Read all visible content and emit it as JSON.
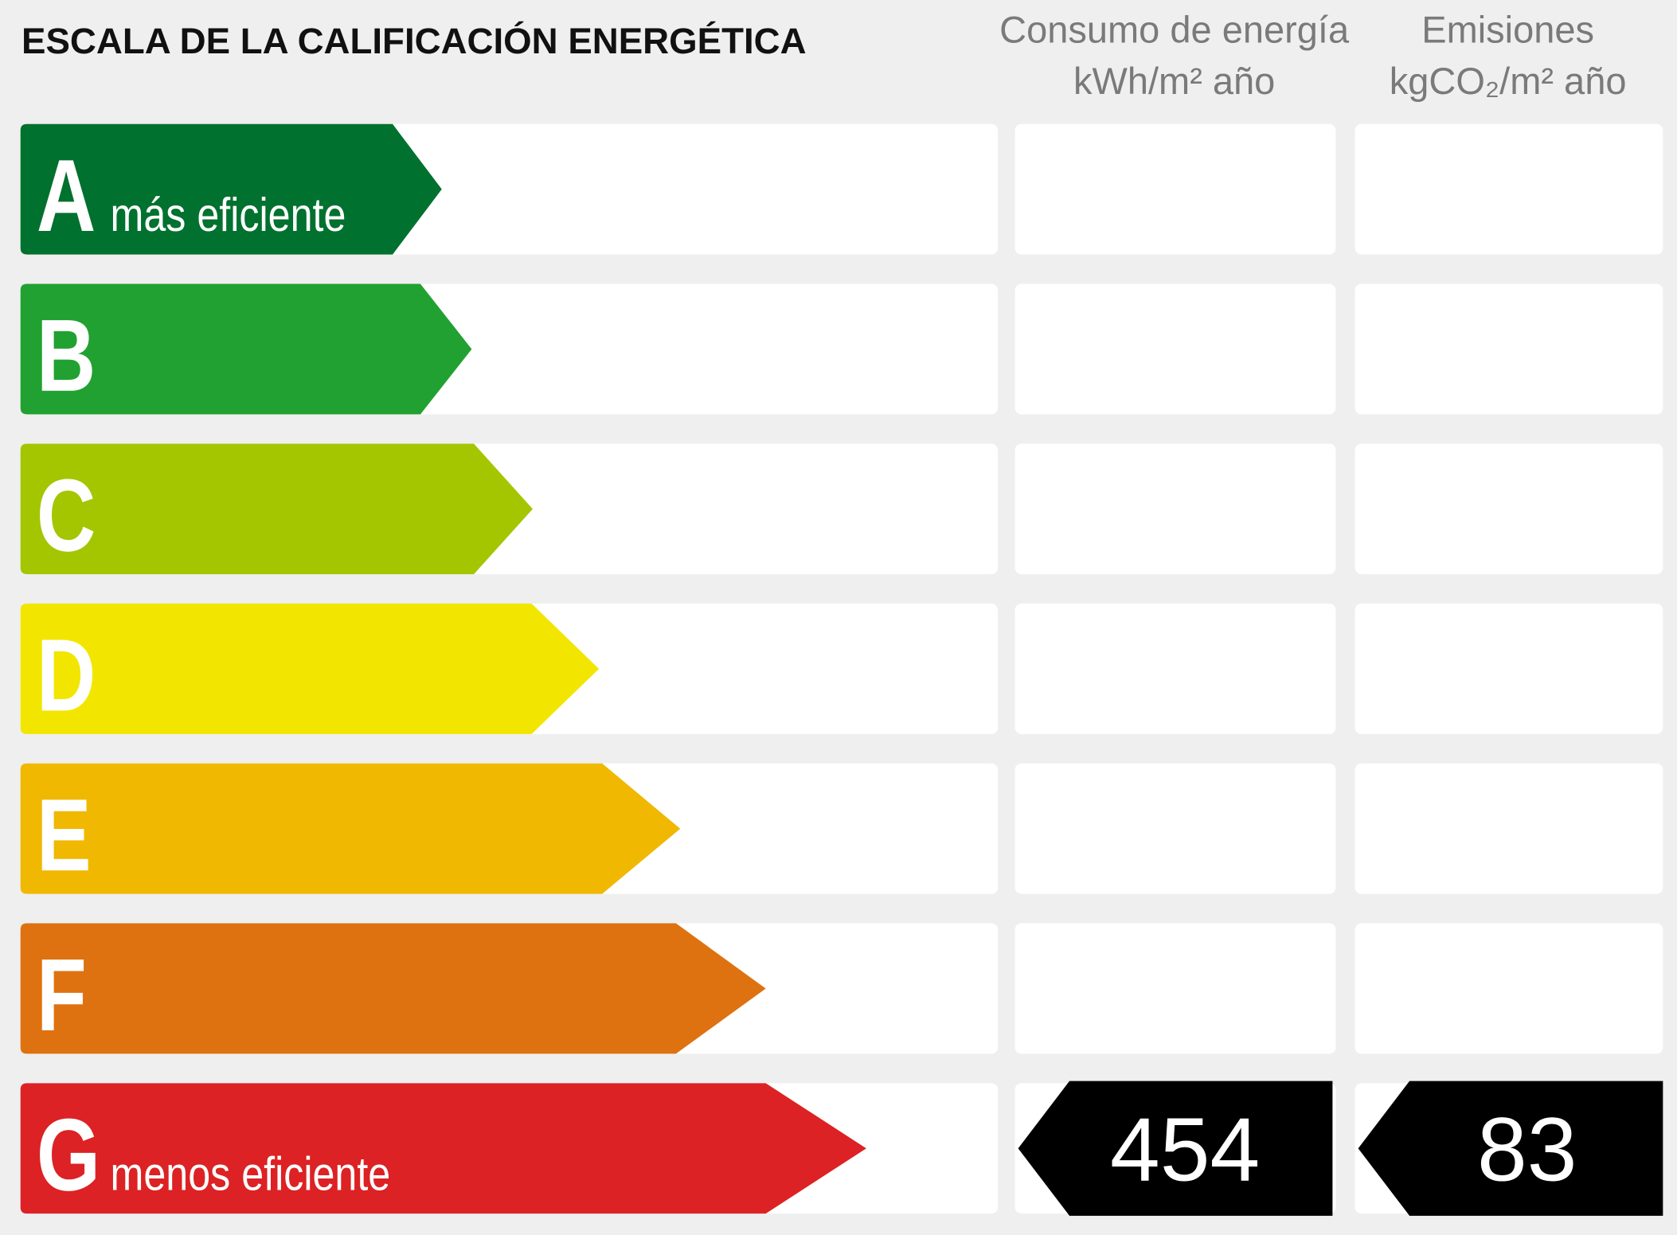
{
  "title": "ESCALA DE LA CALIFICACIÓN ENERGÉTICA",
  "columns": {
    "consumption": {
      "title": "Consumo de energía",
      "unit": "kWh/m² año"
    },
    "emissions": {
      "title": "Emisiones",
      "unit": "kgCO₂/m² año"
    }
  },
  "rows": [
    {
      "letter": "A",
      "label": "más eficiente",
      "color": "#00712e"
    },
    {
      "letter": "B",
      "color": "#21a131"
    },
    {
      "letter": "C",
      "color": "#a3c600"
    },
    {
      "letter": "D",
      "color": "#f2e600"
    },
    {
      "letter": "E",
      "color": "#f0b800"
    },
    {
      "letter": "F",
      "color": "#de7210"
    },
    {
      "letter": "G",
      "label": "menos eficiente",
      "color": "#dc2224",
      "consumption": 454,
      "emissions": 83
    }
  ]
}
